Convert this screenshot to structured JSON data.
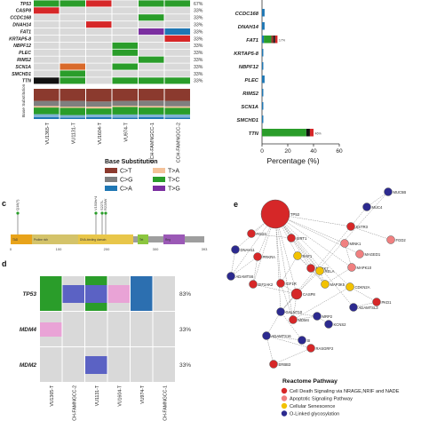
{
  "panel_a": {
    "genes": [
      "TP53",
      "CASP8",
      "CCDC168",
      "DNAH14",
      "FAT1",
      "KRTAP5-8",
      "NBPF12",
      "PLEC",
      "RIMS2",
      "SCN1A",
      "SMCHD1",
      "TTN"
    ],
    "percents": [
      "67%",
      "33%",
      "33%",
      "33%",
      "33%",
      "33%",
      "33%",
      "33%",
      "33%",
      "33%",
      "33%",
      "33%"
    ],
    "samples": [
      "VU1365-T",
      "VU1131-T",
      "VU1604-T",
      "VU974-T",
      "CCH-FAMNGCC-1",
      "CCH-FAMNGCC-2"
    ],
    "grid": [
      [
        "#2a9d2a",
        "#2a9d2a",
        "#d62728",
        "#d9d9d9",
        "#2a9d2a",
        "#2a9d2a"
      ],
      [
        "#d62728",
        "#d9d9d9",
        "#d9d9d9",
        "#d9d9d9",
        "#d9d9d9",
        "#d9d9d9"
      ],
      [
        "#d9d9d9",
        "#d9d9d9",
        "#d9d9d9",
        "#d9d9d9",
        "#2a9d2a",
        "#d9d9d9"
      ],
      [
        "#d9d9d9",
        "#d9d9d9",
        "#d62728",
        "#d9d9d9",
        "#d9d9d9",
        "#d9d9d9"
      ],
      [
        "#d9d9d9",
        "#d9d9d9",
        "#d9d9d9",
        "#d9d9d9",
        "#7b2fa0",
        "#1f77b4"
      ],
      [
        "#d9d9d9",
        "#d9d9d9",
        "#d9d9d9",
        "#d9d9d9",
        "#d9d9d9",
        "#d62728"
      ],
      [
        "#d9d9d9",
        "#d9d9d9",
        "#d9d9d9",
        "#2a9d2a",
        "#d9d9d9",
        "#d9d9d9"
      ],
      [
        "#d9d9d9",
        "#d9d9d9",
        "#d9d9d9",
        "#2a9d2a",
        "#d9d9d9",
        "#d9d9d9"
      ],
      [
        "#d9d9d9",
        "#d9d9d9",
        "#d9d9d9",
        "#d9d9d9",
        "#2a9d2a",
        "#d9d9d9"
      ],
      [
        "#d9d9d9",
        "#d96a2a",
        "#d9d9d9",
        "#2a9d2a",
        "#d9d9d9",
        "#d9d9d9"
      ],
      [
        "#d9d9d9",
        "#2a9d2a",
        "#d9d9d9",
        "#d9d9d9",
        "#d9d9d9",
        "#d9d9d9"
      ],
      [
        "#111111",
        "#2a9d2a",
        "#d9d9d9",
        "#2a9d2a",
        "#2a9d2a",
        "#2a9d2a"
      ]
    ],
    "base_sub_label": "Base Substitution",
    "stack_colors": [
      "#1f77b4",
      "#7fb3d5",
      "#2a9d2a",
      "#f4c29a",
      "#7f7f7f",
      "#8b3a2e"
    ],
    "stacks": [
      [
        0.06,
        0.1,
        0.22,
        0.05,
        0.17,
        0.4
      ],
      [
        0.05,
        0.08,
        0.24,
        0.04,
        0.19,
        0.4
      ],
      [
        0.06,
        0.09,
        0.2,
        0.06,
        0.17,
        0.42
      ],
      [
        0.05,
        0.1,
        0.25,
        0.04,
        0.16,
        0.4
      ],
      [
        0.06,
        0.09,
        0.23,
        0.05,
        0.18,
        0.39
      ],
      [
        0.05,
        0.1,
        0.22,
        0.05,
        0.18,
        0.4
      ]
    ]
  },
  "legend": {
    "title": "Base Substitution",
    "items": [
      {
        "label": "C>T",
        "color": "#8b3a2e"
      },
      {
        "label": "T>A",
        "color": "#f4c29a"
      },
      {
        "label": "C>G",
        "color": "#7f7f7f"
      },
      {
        "label": "T>C",
        "color": "#2a9d2a"
      },
      {
        "label": "C>A",
        "color": "#1f77b4"
      },
      {
        "label": "T>G",
        "color": "#7b2fa0"
      }
    ]
  },
  "chart_data": {
    "type": "bar",
    "orientation": "horizontal",
    "categories": [
      "CCDC168",
      "DNAH14",
      "FAT1",
      "KRTAP5-8",
      "NBPF12",
      "PLEC",
      "RIMS2",
      "SCN1A",
      "SMCHD1",
      "TTN"
    ],
    "values": [
      2,
      2,
      12,
      1,
      1,
      2,
      1,
      1,
      1,
      40
    ],
    "value_labels": [
      "",
      "",
      "17%",
      "",
      "",
      "",
      "",
      "",
      "",
      "46%"
    ],
    "segment_colors": {
      "FAT1": [
        "#1f77b4",
        "#2a9d2a",
        "#8b3a2e",
        "#111111",
        "#d62728"
      ],
      "TTN": [
        "#2a9d2a",
        "#111111",
        "#d62728"
      ]
    },
    "xlabel": "Percentage (%)",
    "xticks": [
      0,
      20,
      40,
      60
    ],
    "xlim": [
      0,
      60
    ]
  },
  "panel_c": {
    "letter": "c",
    "mutations": [
      "Q18(?)",
      "V150fs*4",
      "S227L",
      "R228W"
    ],
    "domains": [
      {
        "label": "TAD",
        "color": "#e8a31a"
      },
      {
        "label": "Proline rich",
        "color": "#d4c36a"
      },
      {
        "label": "DNA-binding domain",
        "color": "#e8c64a"
      },
      {
        "label": "Tet",
        "color": "#8cc63f"
      },
      {
        "label": "Reg",
        "color": "#9b59b6"
      }
    ],
    "ticks": [
      "0",
      "100",
      "200",
      "300",
      "393"
    ]
  },
  "panel_d": {
    "letter": "d",
    "genes": [
      "TP53",
      "MDM4",
      "MDM2"
    ],
    "percents": [
      "83%",
      "33%",
      "33%"
    ],
    "samples": [
      "VU1365-T",
      "CCH-FAMNGCC-2",
      "VU1131-T",
      "VU1604-T",
      "VU974-T",
      "CCH-FAMNGCC-1"
    ],
    "colors": {
      "green": "#2a9d2a",
      "blue": "#5b62c4",
      "pink": "#e9a3d6",
      "steel": "#2c6fb0",
      "bg": "#d9d9d9"
    }
  },
  "panel_e": {
    "letter": "e",
    "nodes": [
      {
        "id": "TP53",
        "label": "TP53",
        "type": "red"
      },
      {
        "id": "MUC5B",
        "label": "MUC5B",
        "type": "blue"
      },
      {
        "id": "MUC4",
        "label": "MUC4",
        "type": "blue"
      },
      {
        "id": "SSTR3",
        "label": "SSTR3",
        "type": "red"
      },
      {
        "id": "FGD2",
        "label": "FGD2",
        "type": "pink"
      },
      {
        "id": "FGD3",
        "label": "FGD3",
        "type": "red"
      },
      {
        "id": "SIRT1",
        "label": "SIRT1",
        "type": "red"
      },
      {
        "id": "MINK1",
        "label": "MINK1",
        "type": "pink"
      },
      {
        "id": "DNAH11",
        "label": "DNAH11",
        "type": "blue"
      },
      {
        "id": "PRKRA",
        "label": "PRKRA",
        "type": "red"
      },
      {
        "id": "RAF1",
        "label": "RAF1",
        "type": "yellow"
      },
      {
        "id": "MAGED1",
        "label": "MAGED1",
        "type": "pink"
      },
      {
        "id": "ADAMTS6",
        "label": "ADAMTS6",
        "type": "blue"
      },
      {
        "id": "MAPK7",
        "label": "MAPK7",
        "type": "red"
      },
      {
        "id": "IGF1R",
        "label": "IGF1R",
        "type": "red"
      },
      {
        "id": "MAPK10",
        "label": "MAPK10",
        "type": "pink"
      },
      {
        "id": "MAP3K5",
        "label": "MAP3K5",
        "type": "yellow"
      },
      {
        "id": "RELA",
        "label": "RELA",
        "type": "yellow"
      },
      {
        "id": "CASP8",
        "label": "CASP8",
        "type": "red"
      },
      {
        "id": "EIF2AK2",
        "label": "EIF2AK2",
        "type": "red"
      },
      {
        "id": "CDKN2A",
        "label": "CDKN2A",
        "type": "yellow"
      },
      {
        "id": "MDM4",
        "label": "MDM4",
        "type": "red"
      },
      {
        "id": "ADAMTSL3",
        "label": "ADAMTSL3",
        "type": "blue"
      },
      {
        "id": "PKD1",
        "label": "PKD1",
        "type": "red"
      },
      {
        "id": "GALNT10",
        "label": "GALNT10",
        "type": "blue"
      },
      {
        "id": "MRP2",
        "label": "MRP2",
        "type": "blue"
      },
      {
        "id": "KCNS2",
        "label": "KCNS2",
        "type": "blue"
      },
      {
        "id": "ADAMTS16",
        "label": "ADAMTS16",
        "type": "blue"
      },
      {
        "id": "SI",
        "label": "SI",
        "type": "blue"
      },
      {
        "id": "RASGRF2",
        "label": "RASGRF2",
        "type": "red"
      },
      {
        "id": "ERBB3",
        "label": "ERBB3",
        "type": "red"
      }
    ],
    "edges": [
      [
        "TP53",
        "SIRT1"
      ],
      [
        "TP53",
        "FGD3"
      ],
      [
        "TP53",
        "PRKRA"
      ],
      [
        "TP53",
        "RAF1"
      ],
      [
        "TP53",
        "MAPK7"
      ],
      [
        "TP53",
        "IGF1R"
      ],
      [
        "TP53",
        "MAP3K5"
      ],
      [
        "TP53",
        "RELA"
      ],
      [
        "TP53",
        "CASP8"
      ],
      [
        "TP53",
        "MINK1"
      ],
      [
        "TP53",
        "SSTR3"
      ],
      [
        "TP53",
        "MDM4"
      ],
      [
        "TP53",
        "CDKN2A"
      ],
      [
        "TP53",
        "MAPK10"
      ],
      [
        "TP53",
        "EIF2AK2"
      ],
      [
        "TP53",
        "ADAMTSL3"
      ],
      [
        "TP53",
        "GALNT10"
      ],
      [
        "TP53",
        "MAGED1"
      ],
      [
        "TP53",
        "ADAMTS6"
      ],
      [
        "TP53",
        "DNAH11"
      ],
      [
        "MUC5B",
        "MUC4"
      ],
      [
        "MUC4",
        "GALNT10"
      ],
      [
        "MUC5B",
        "GALNT10"
      ],
      [
        "SSTR3",
        "FGD2"
      ],
      [
        "SIRT1",
        "RELA"
      ],
      [
        "RAF1",
        "MAPK7"
      ],
      [
        "RAF1",
        "IGF1R"
      ],
      [
        "RAF1",
        "MAP3K5"
      ],
      [
        "IGF1R",
        "CASP8"
      ],
      [
        "IGF1R",
        "MDM4"
      ],
      [
        "RELA",
        "CASP8"
      ],
      [
        "RELA",
        "MAP3K5"
      ],
      [
        "CASP8",
        "EIF2AK2"
      ],
      [
        "CASP8",
        "MDM4"
      ],
      [
        "CASP8",
        "GALNT10"
      ],
      [
        "MAPK7",
        "MAP3K5"
      ],
      [
        "MAPK10",
        "MAP3K5"
      ],
      [
        "MINK1",
        "MAPK10"
      ],
      [
        "CDKN2A",
        "MDM4"
      ],
      [
        "CDKN2A",
        "PKD1"
      ],
      [
        "ADAMTSL3",
        "PKD1"
      ],
      [
        "MRP2",
        "GALNT10"
      ],
      [
        "MRP2",
        "KCNS2"
      ],
      [
        "ADAMTS16",
        "SI"
      ],
      [
        "ADAMTS16",
        "RASGRF2"
      ],
      [
        "ADAMTS16",
        "ERBB3"
      ],
      [
        "RASGRF2",
        "ERBB3"
      ],
      [
        "GALNT10",
        "ADAMTS16"
      ],
      [
        "SI",
        "GALNT10"
      ],
      [
        "PRKRA",
        "EIF2AK2"
      ],
      [
        "FGD3",
        "SIRT1"
      ],
      [
        "MDM4",
        "MRP2"
      ],
      [
        "ADAMTS6",
        "PRKRA"
      ],
      [
        "DNAH11",
        "ADAMTS6"
      ]
    ],
    "node_colors": {
      "red": "#d62728",
      "blue": "#2c2a8f",
      "pink": "#f08080",
      "yellow": "#f2c200"
    },
    "legend_title": "Reactome Pathway",
    "legend_items": [
      {
        "label": "Cell Death Signaling via NRAGE,NRIF and NADE",
        "type": "red"
      },
      {
        "label": "Apoptotic Signaling Pathway",
        "type": "pink"
      },
      {
        "label": "Cellular Senescence",
        "type": "yellow"
      },
      {
        "label": "O-Linked glycosylation",
        "type": "blue"
      }
    ]
  }
}
